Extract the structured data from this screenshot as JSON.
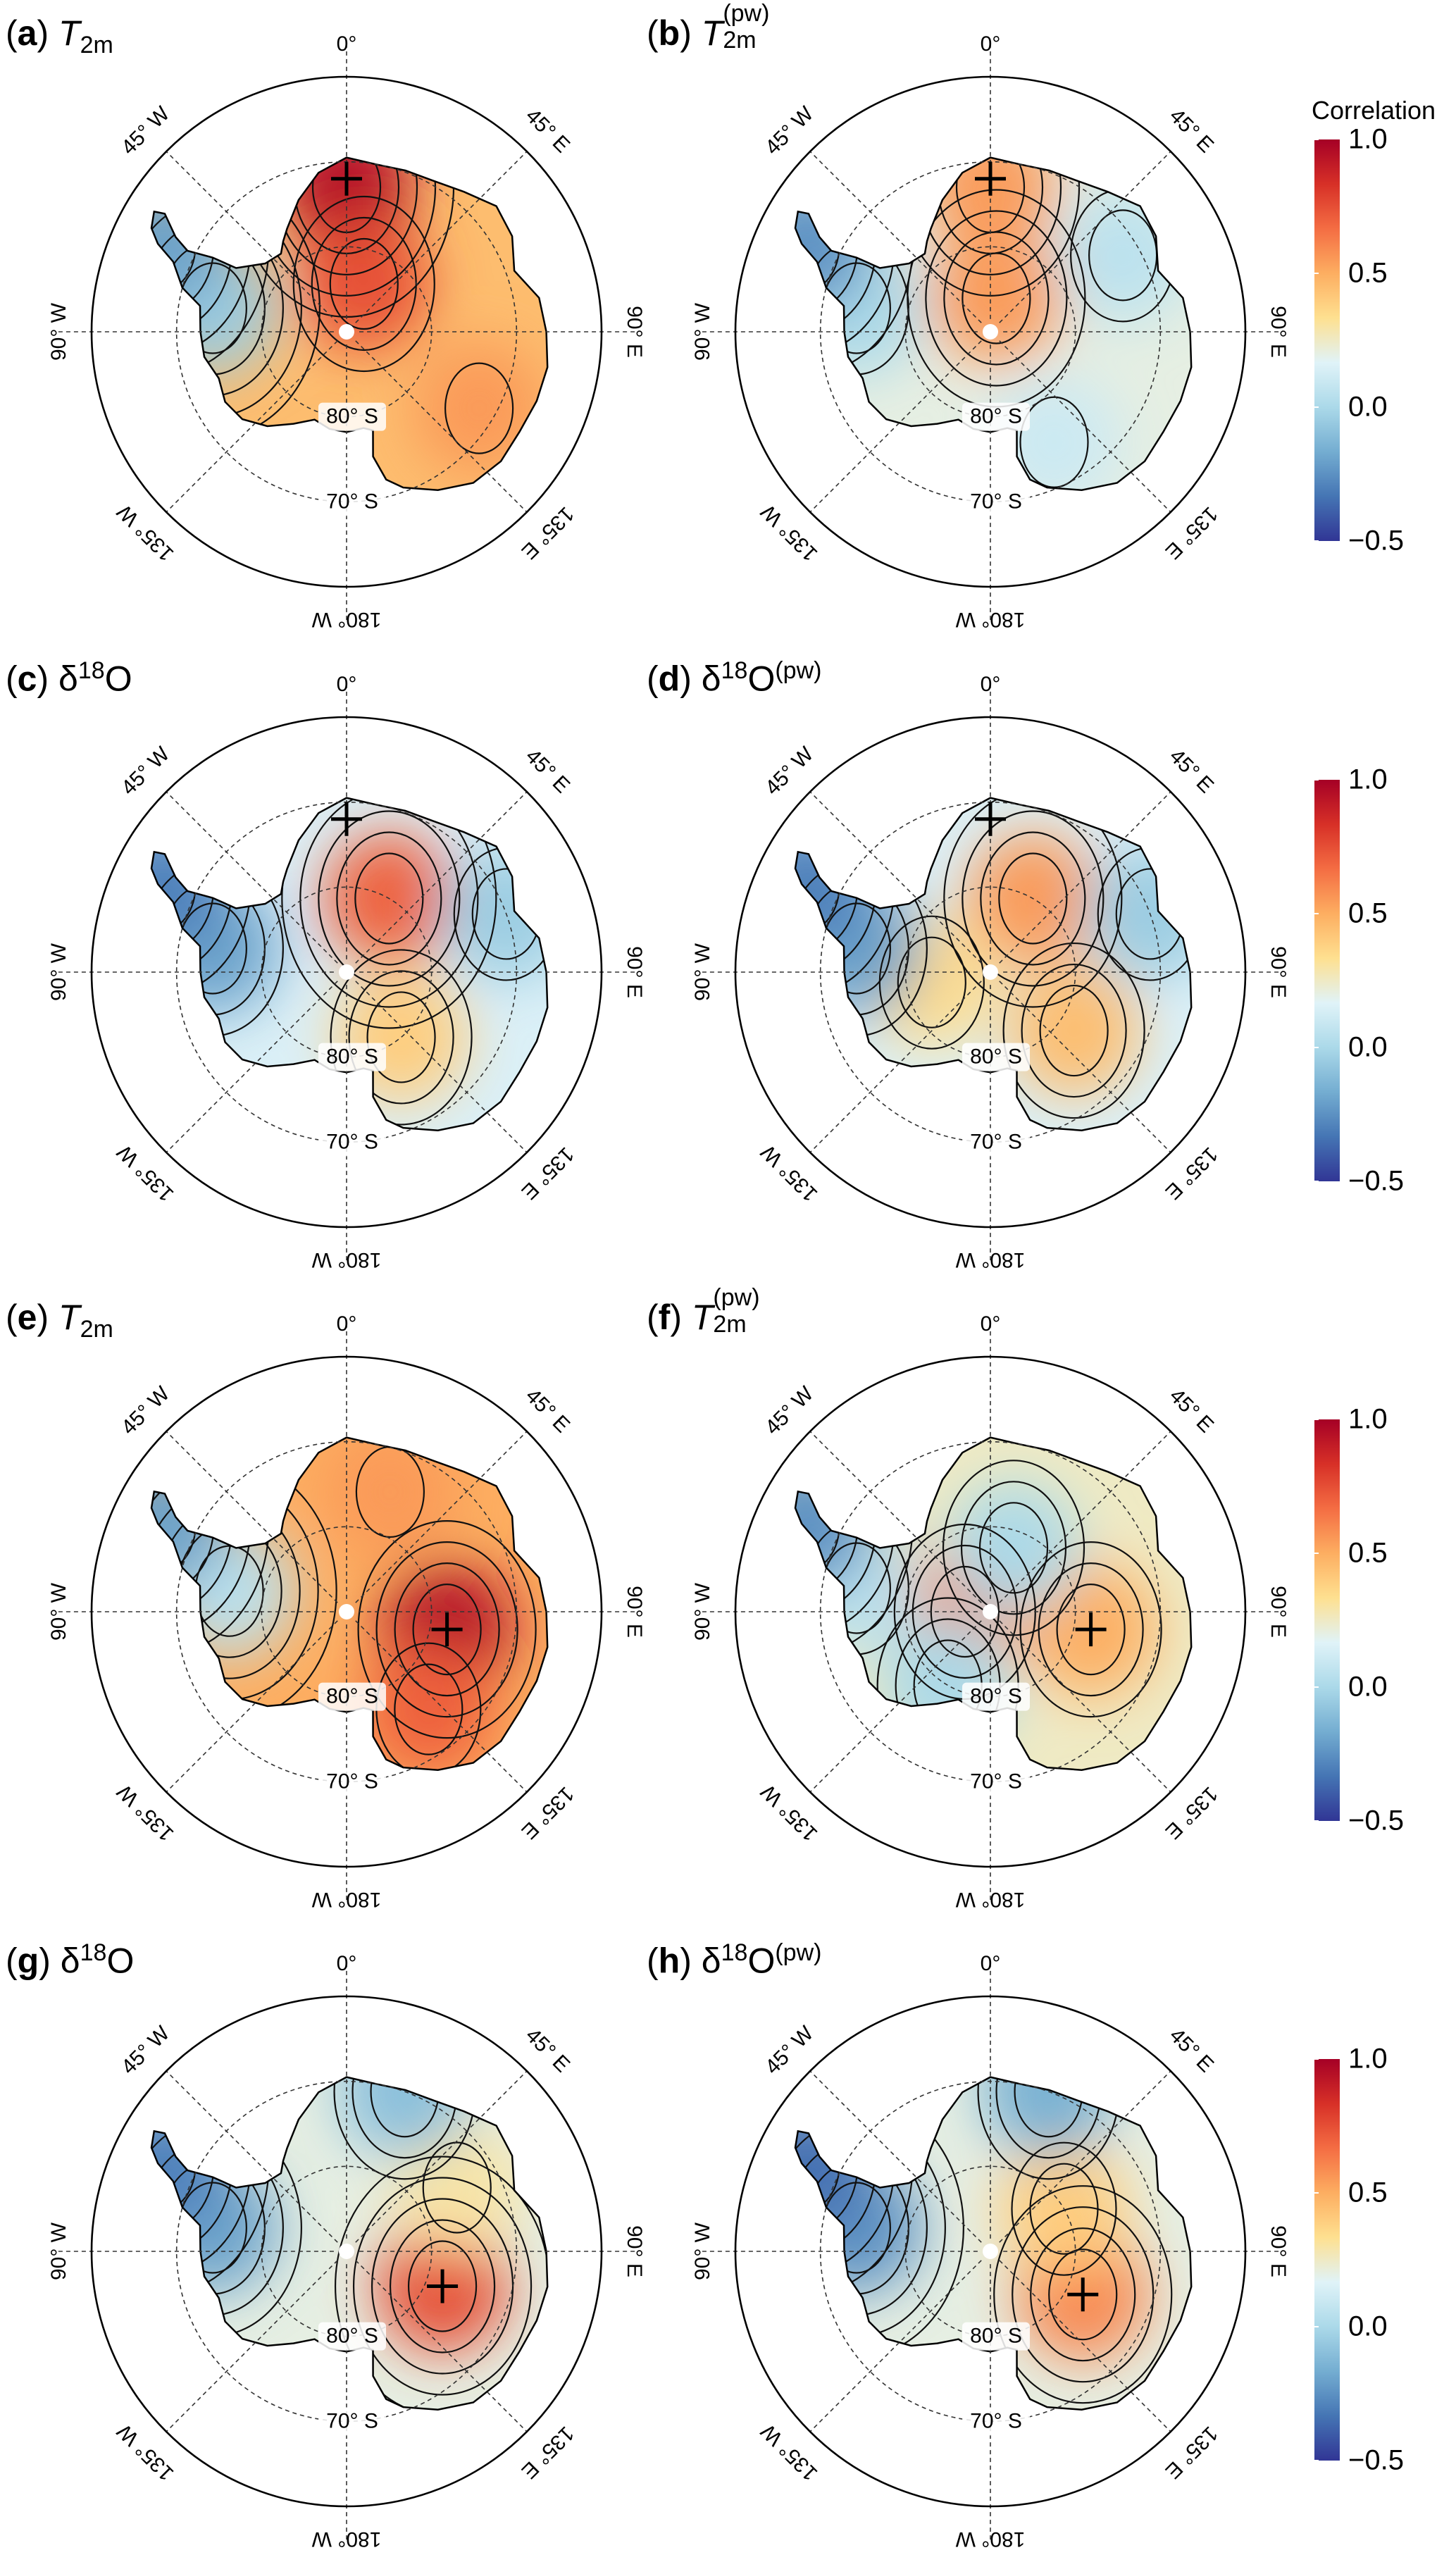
{
  "figure": {
    "colorbar": {
      "title": "Correlation",
      "ticks": [
        "1.0",
        "0.5",
        "0.0",
        "−0.5"
      ],
      "tick_values": [
        1.0,
        0.5,
        0.0,
        -0.5
      ],
      "range": [
        -0.5,
        1.0
      ],
      "colors": [
        "#313695",
        "#4575b4",
        "#74add1",
        "#abd9e9",
        "#e0f3f8",
        "#fee090",
        "#fdae61",
        "#f46d43",
        "#d73027",
        "#a50026"
      ]
    },
    "map_labels": {
      "lon_0": "0°",
      "lon_45e": "45° E",
      "lon_90e": "90° E",
      "lon_135e": "135° E",
      "lon_180": "180° W",
      "lon_135w": "135° W",
      "lon_90w": "90° W",
      "lon_45w": "45° W",
      "lat_80": "80° S",
      "lat_70": "70° S"
    }
  },
  "chart_data": [
    {
      "type": "heatmap",
      "panel": "a",
      "letter": "a",
      "variable": "T",
      "subscript": "2m",
      "superscript": "",
      "title": "(a) T2m",
      "base_value": 0.45,
      "marker": {
        "lon": 0,
        "lat": -72
      },
      "hotspots": [
        {
          "lon": 0,
          "lat": -73,
          "value": 0.95
        },
        {
          "lon": 20,
          "lat": -84,
          "value": 0.75
        },
        {
          "lon": 120,
          "lat": -72,
          "value": 0.55
        },
        {
          "lon": -80,
          "lat": -74,
          "value": -0.05
        },
        {
          "lon": -65,
          "lat": -66,
          "value": -0.2
        }
      ]
    },
    {
      "type": "heatmap",
      "panel": "b",
      "letter": "b",
      "variable": "T",
      "subscript": "2m",
      "superscript": "(pw)",
      "title": "(b) T2m(pw)",
      "base_value": 0.2,
      "marker": {
        "lon": 0,
        "lat": -72
      },
      "hotspots": [
        {
          "lon": 0,
          "lat": -73,
          "value": 0.55
        },
        {
          "lon": 10,
          "lat": -86,
          "value": 0.55
        },
        {
          "lon": 60,
          "lat": -72,
          "value": 0.05
        },
        {
          "lon": -80,
          "lat": -74,
          "value": 0.0
        },
        {
          "lon": -65,
          "lat": -66,
          "value": -0.25
        },
        {
          "lon": 150,
          "lat": -75,
          "value": 0.1
        }
      ]
    },
    {
      "type": "heatmap",
      "panel": "c",
      "letter": "c",
      "variable": "δ",
      "subscript": "",
      "superscript": "18",
      "suffix": "O",
      "title": "(c) δ18O",
      "base_value": 0.15,
      "marker": {
        "lon": 0,
        "lat": -72
      },
      "hotspots": [
        {
          "lon": 30,
          "lat": -80,
          "value": 0.7
        },
        {
          "lon": 140,
          "lat": -80,
          "value": 0.4
        },
        {
          "lon": -80,
          "lat": -74,
          "value": -0.2
        },
        {
          "lon": -65,
          "lat": -66,
          "value": -0.3
        },
        {
          "lon": 70,
          "lat": -70,
          "value": -0.05
        }
      ]
    },
    {
      "type": "heatmap",
      "panel": "d",
      "letter": "d",
      "variable": "δ",
      "subscript": "",
      "superscript": "18",
      "suffix": "O",
      "superscript2": "(pw)",
      "title": "(d) δ18O(pw)",
      "base_value": 0.15,
      "marker": {
        "lon": 0,
        "lat": -72
      },
      "hotspots": [
        {
          "lon": 30,
          "lat": -80,
          "value": 0.55
        },
        {
          "lon": 125,
          "lat": -78,
          "value": 0.45
        },
        {
          "lon": -100,
          "lat": -83,
          "value": 0.35
        },
        {
          "lon": -80,
          "lat": -74,
          "value": -0.2
        },
        {
          "lon": -65,
          "lat": -66,
          "value": -0.3
        },
        {
          "lon": 70,
          "lat": -70,
          "value": -0.05
        }
      ]
    },
    {
      "type": "heatmap",
      "panel": "e",
      "letter": "e",
      "variable": "T",
      "subscript": "2m",
      "superscript": "",
      "title": "(e) T2m",
      "base_value": 0.5,
      "marker": {
        "lon": 100,
        "lat": -78
      },
      "hotspots": [
        {
          "lon": 100,
          "lat": -78,
          "value": 0.95
        },
        {
          "lon": 140,
          "lat": -75,
          "value": 0.7
        },
        {
          "lon": 20,
          "lat": -75,
          "value": 0.55
        },
        {
          "lon": -80,
          "lat": -76,
          "value": 0.05
        },
        {
          "lon": -65,
          "lat": -66,
          "value": -0.2
        }
      ]
    },
    {
      "type": "heatmap",
      "panel": "f",
      "letter": "f",
      "variable": "T",
      "subscript": "2m",
      "superscript": "(pw)",
      "title": "(f) T2m(pw)",
      "base_value": 0.25,
      "marker": {
        "lon": 100,
        "lat": -78
      },
      "hotspots": [
        {
          "lon": -90,
          "lat": -87,
          "value": 0.6
        },
        {
          "lon": 100,
          "lat": -78,
          "value": 0.5
        },
        {
          "lon": -150,
          "lat": -80,
          "value": 0.0
        },
        {
          "lon": 20,
          "lat": -82,
          "value": 0.0
        },
        {
          "lon": -80,
          "lat": -74,
          "value": 0.05
        },
        {
          "lon": -65,
          "lat": -66,
          "value": -0.25
        }
      ]
    },
    {
      "type": "heatmap",
      "panel": "g",
      "letter": "g",
      "variable": "δ",
      "subscript": "",
      "superscript": "18",
      "suffix": "O",
      "title": "(g) δ18O",
      "base_value": 0.2,
      "marker": {
        "lon": 110,
        "lat": -78
      },
      "hotspots": [
        {
          "lon": 110,
          "lat": -78,
          "value": 0.75
        },
        {
          "lon": 60,
          "lat": -75,
          "value": 0.3
        },
        {
          "lon": 20,
          "lat": -70,
          "value": -0.1
        },
        {
          "lon": -80,
          "lat": -74,
          "value": -0.2
        },
        {
          "lon": -65,
          "lat": -66,
          "value": -0.3
        }
      ]
    },
    {
      "type": "heatmap",
      "panel": "h",
      "letter": "h",
      "variable": "δ",
      "subscript": "",
      "superscript": "18",
      "suffix": "O",
      "superscript2": "(pw)",
      "title": "(h) δ18O(pw)",
      "base_value": 0.2,
      "marker": {
        "lon": 115,
        "lat": -78
      },
      "hotspots": [
        {
          "lon": 115,
          "lat": -78,
          "value": 0.6
        },
        {
          "lon": 60,
          "lat": -80,
          "value": 0.4
        },
        {
          "lon": 20,
          "lat": -70,
          "value": -0.15
        },
        {
          "lon": -80,
          "lat": -74,
          "value": -0.25
        },
        {
          "lon": -65,
          "lat": -66,
          "value": -0.35
        }
      ]
    }
  ]
}
